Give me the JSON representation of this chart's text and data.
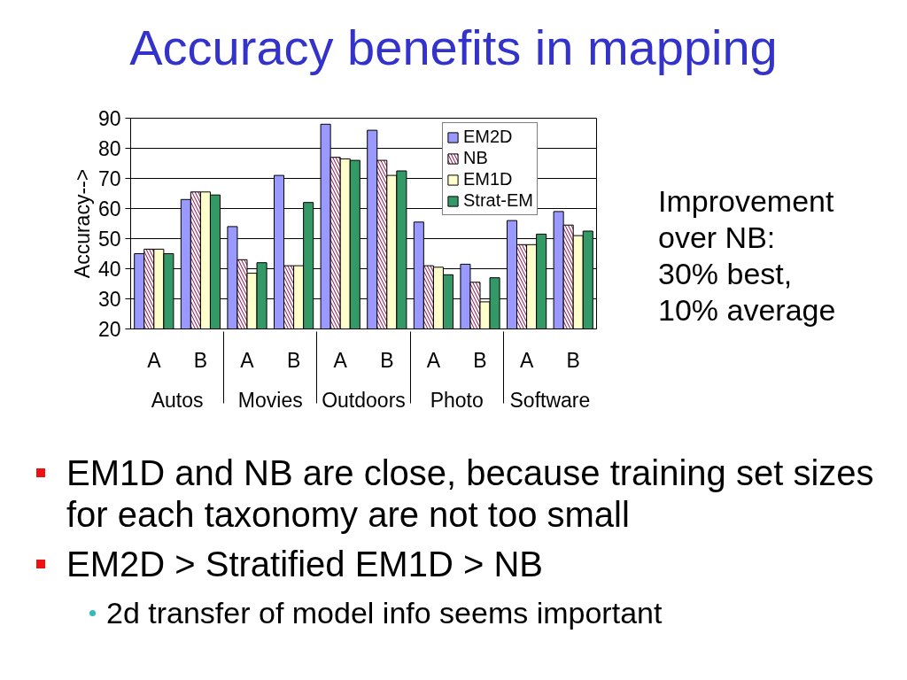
{
  "chart_data": {
    "type": "bar",
    "title": "Accuracy benefits in mapping",
    "ylabel": "Accuracy-->",
    "categories": [
      [
        "Autos",
        "A"
      ],
      [
        null,
        "B"
      ],
      [
        "Movies",
        "A"
      ],
      [
        null,
        "B"
      ],
      [
        "Outdoors",
        "A"
      ],
      [
        null,
        "B"
      ],
      [
        "Photo",
        "A"
      ],
      [
        null,
        "B"
      ],
      [
        "Software",
        "A"
      ],
      [
        null,
        "B"
      ]
    ],
    "series": [
      {
        "name": "EM2D",
        "color": "#9999ff",
        "values": [
          45,
          63,
          54,
          71,
          88,
          86,
          55.5,
          41.5,
          56,
          59
        ]
      },
      {
        "name": "NB",
        "color": "#993366",
        "values": [
          46.5,
          65.5,
          43,
          41,
          77,
          76,
          41,
          35.5,
          48,
          54.5
        ]
      },
      {
        "name": "EM1D",
        "color": "#ffffcc",
        "values": [
          46.5,
          65.5,
          38.5,
          41,
          76.5,
          71,
          40.5,
          29,
          48,
          51
        ]
      },
      {
        "name": "Strat-EM",
        "color": "#339966",
        "values": [
          45,
          64.5,
          42,
          62,
          76,
          72.5,
          38,
          37,
          51.5,
          52.5
        ]
      }
    ],
    "ylim": [
      20,
      90
    ],
    "yticks": [
      20,
      30,
      40,
      50,
      60,
      70,
      80,
      90
    ],
    "grid": "y",
    "legend": "top right",
    "annotations": [
      "Improvement\nover NB:\n30% best,\n10% average",
      "EM1D and NB are close, because training set sizes for each taxonomy are not too small",
      "EM2D > Stratified EM1D > NB",
      "2d transfer of model info seems important"
    ]
  }
}
